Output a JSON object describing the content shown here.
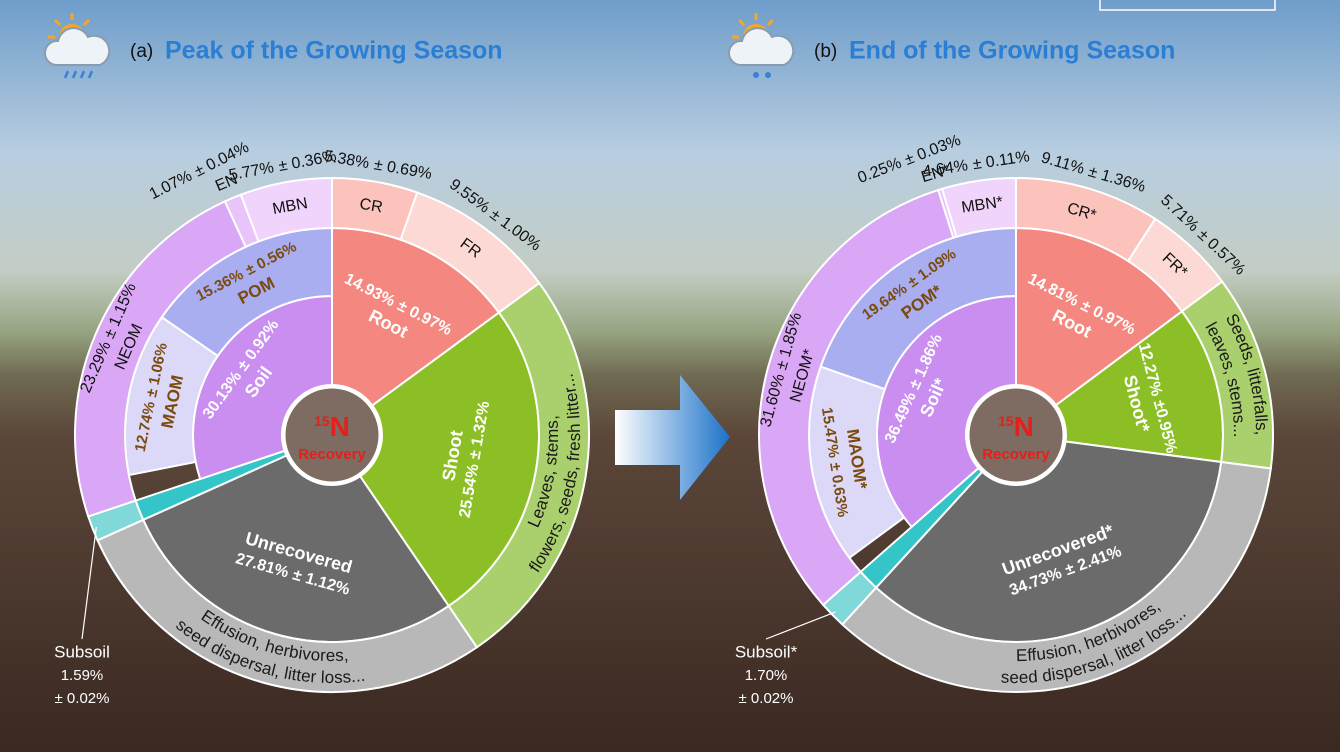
{
  "chart_data": [
    {
      "type": "sunburst",
      "panel_label": "(a)",
      "title": "Peak of the Growing Season",
      "center": {
        "isotope": "15",
        "element": "N",
        "label": "Recovery"
      },
      "segments": [
        {
          "name": "Root",
          "value": 14.93,
          "error": 0.97,
          "value_label": "14.93%",
          "error_label": "± 0.97%",
          "color": "#f4877f",
          "parts": [
            {
              "name": "CR",
              "value": 5.38,
              "error": 0.69,
              "value_label": "5.38%",
              "error_label": "± 0.69%",
              "color": "#fcc3bd"
            },
            {
              "name": "FR",
              "value": 9.55,
              "error": 1.0,
              "value_label": "9.55%",
              "error_label": "± 1.00%",
              "color": "#fdd9d5"
            }
          ]
        },
        {
          "name": "Shoot",
          "value": 25.54,
          "error": 1.32,
          "value_label": "25.54%",
          "error_label": "± 1.32%",
          "color": "#8cbf26",
          "description": [
            "Leaves, stems,",
            "flowers, seeds, fresh litter..."
          ],
          "description_color": "#a9d06c"
        },
        {
          "name": "Unrecovered",
          "value": 27.81,
          "error": 1.12,
          "value_label": "27.81%",
          "error_label": "± 1.12%",
          "color": "#6b6b6b",
          "description": [
            "Effusion, herbivores,",
            "seed dispersal, litter loss..."
          ],
          "description_color": "#b8b8b8"
        },
        {
          "name": "Subsoil",
          "value": 1.59,
          "error": 0.02,
          "value_label": "1.59%",
          "error_label": "± 0.02%",
          "color": "#33c5c7",
          "outer_color": "#80d9d8"
        },
        {
          "name": "Soil",
          "value": 30.13,
          "error": 0.92,
          "value_label": "30.13%",
          "error_label": "± 0.92%",
          "color": "#c98ef0",
          "fractions": [
            {
              "name": "MAOM",
              "value": 12.74,
              "error": 1.06,
              "value_label": "12.74%",
              "error_label": "± 1.06%",
              "color": "#dcd8f8"
            },
            {
              "name": "POM",
              "value": 15.36,
              "error": 0.56,
              "value_label": "15.36%",
              "error_label": "± 0.56%",
              "color": "#a9aef0"
            }
          ],
          "parts": [
            {
              "name": "NEOM",
              "value": 23.29,
              "error": 1.15,
              "value_label": "23.29%",
              "error_label": "± 1.15%",
              "color": "#d9a7f5"
            },
            {
              "name": "EN",
              "value": 1.07,
              "error": 0.04,
              "value_label": "1.07%",
              "error_label": "± 0.04%",
              "color": "#e8c4fa"
            },
            {
              "name": "MBN",
              "value": 5.77,
              "error": 0.36,
              "value_label": "5.77%",
              "error_label": "± 0.36%",
              "color": "#f0d4fc"
            }
          ]
        }
      ]
    },
    {
      "type": "sunburst",
      "panel_label": "(b)",
      "title": "End of the Growing Season",
      "center": {
        "isotope": "15",
        "element": "N",
        "label": "Recovery"
      },
      "segments": [
        {
          "name": "Root",
          "value": 14.81,
          "error": 0.97,
          "value_label": "14.81%",
          "error_label": "± 0.97%",
          "color": "#f4877f",
          "parts": [
            {
              "name": "CR*",
              "value": 9.11,
              "error": 1.36,
              "value_label": "9.11%",
              "error_label": "± 1.36%",
              "color": "#fcc3bd"
            },
            {
              "name": "FR*",
              "value": 5.71,
              "error": 0.57,
              "value_label": "5.71%",
              "error_label": "± 0.57%",
              "color": "#fdd9d5"
            }
          ]
        },
        {
          "name": "Shoot*",
          "value": 12.27,
          "error": 0.95,
          "value_label": "12.27%",
          "error_label": "±0.95%",
          "color": "#8cbf26",
          "description": [
            "Seeds, litterfalls,",
            "leaves, stems..."
          ],
          "description_color": "#a9d06c"
        },
        {
          "name": "Unrecovered*",
          "value": 34.73,
          "error": 2.41,
          "value_label": "34.73%",
          "error_label": "± 2.41%",
          "color": "#6b6b6b",
          "description": [
            "Effusion, herbivores,",
            "seed dispersal, litter loss..."
          ],
          "description_color": "#b8b8b8"
        },
        {
          "name": "Subsoil*",
          "value": 1.7,
          "error": 0.02,
          "value_label": "1.70%",
          "error_label": "± 0.02%",
          "color": "#33c5c7",
          "outer_color": "#80d9d8"
        },
        {
          "name": "Soil*",
          "value": 36.49,
          "error": 1.86,
          "value_label": "36.49%",
          "error_label": "± 1.86%",
          "color": "#c98ef0",
          "fractions": [
            {
              "name": "MAOM*",
              "value": 15.47,
              "error": 0.63,
              "value_label": "15.47%",
              "error_label": "± 0.63%",
              "color": "#dcd8f8"
            },
            {
              "name": "POM*",
              "value": 19.64,
              "error": 1.09,
              "value_label": "19.64%",
              "error_label": "± 1.09%",
              "color": "#a9aef0"
            }
          ],
          "parts": [
            {
              "name": "NEOM*",
              "value": 31.6,
              "error": 1.85,
              "value_label": "31.60%",
              "error_label": "± 1.85%",
              "color": "#d9a7f5"
            },
            {
              "name": "EN*",
              "value": 0.25,
              "error": 0.03,
              "value_label": "0.25%",
              "error_label": "± 0.03%",
              "color": "#e8c4fa"
            },
            {
              "name": "MBN*",
              "value": 4.64,
              "error": 0.11,
              "value_label": "4.64%",
              "error_label": "± 0.11%",
              "color": "#f0d4fc"
            }
          ]
        }
      ]
    }
  ]
}
